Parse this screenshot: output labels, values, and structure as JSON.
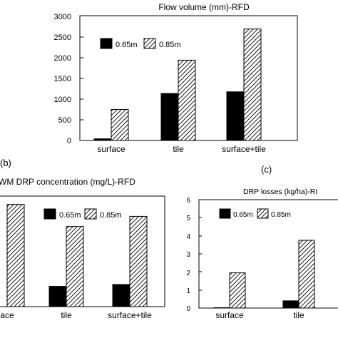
{
  "colors": {
    "solid_series": "#000000",
    "hatched_series": "#ffffff",
    "hatch_stroke": "#000000",
    "axis": "#000000"
  },
  "chart_data": [
    {
      "id": "top",
      "type": "bar",
      "title": "Flow volume (mm)-RFD",
      "categories": [
        "surface",
        "tile",
        "surface+tile"
      ],
      "series": [
        {
          "name": "0.65m",
          "style": "solid",
          "values": [
            40,
            1130,
            1170
          ]
        },
        {
          "name": "0.85m",
          "style": "hatched",
          "values": [
            745,
            1930,
            2680
          ]
        }
      ],
      "ylim": [
        0,
        3000
      ],
      "yticks": [
        "0",
        "500",
        "1000",
        "1500",
        "2000",
        "2500",
        "3000"
      ],
      "grid": false,
      "legend": "top"
    },
    {
      "id": "b",
      "panel_label": "(b)",
      "type": "bar",
      "title": "WM DRP concentration (mg/L)-RFD",
      "categories": [
        "ace",
        "tile",
        "surface+tile"
      ],
      "series": [
        {
          "name": "0.65m",
          "style": "solid",
          "values": [
            null,
            0.11,
            0.12
          ]
        },
        {
          "name": "0.85m",
          "style": "hatched",
          "values": [
            0.555,
            0.435,
            0.49
          ]
        }
      ],
      "ylim": [
        0,
        0.6
      ],
      "grid": false,
      "legend": "top"
    },
    {
      "id": "c",
      "panel_label": "(c)",
      "type": "bar",
      "title": "DRP losses (kg/ha)-RI",
      "categories": [
        "surface",
        "tile"
      ],
      "series": [
        {
          "name": "0.65m",
          "style": "solid",
          "values": [
            0.02,
            0.4
          ]
        },
        {
          "name": "0.85m",
          "style": "hatched",
          "values": [
            1.95,
            3.75
          ]
        }
      ],
      "ylim": [
        0,
        6
      ],
      "yticks": [
        "0",
        "1",
        "2",
        "3",
        "4",
        "5",
        "6"
      ],
      "grid": false,
      "legend": "top"
    }
  ]
}
